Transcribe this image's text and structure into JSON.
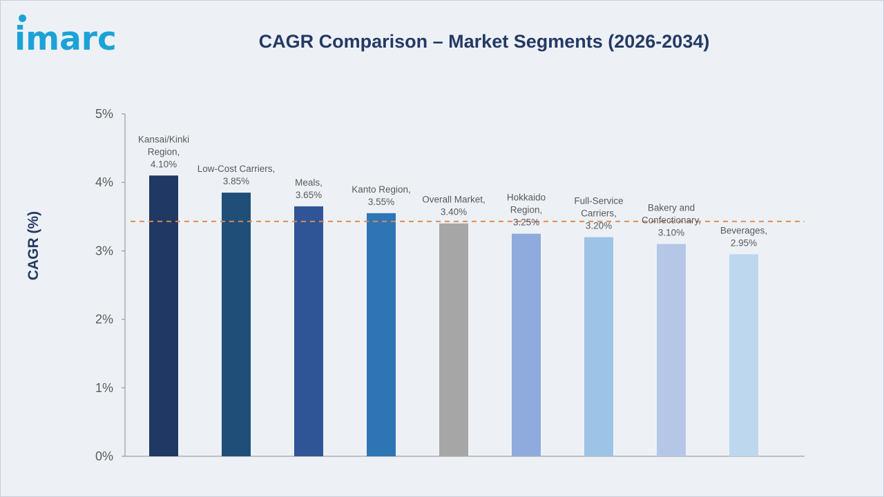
{
  "brand": {
    "logo_text": "imarc"
  },
  "chart_data": {
    "type": "bar",
    "title": "CAGR Comparison – Market Segments (2026-2034)",
    "xlabel": "",
    "ylabel": "CAGR (%)",
    "ylim": [
      0,
      5
    ],
    "yticks": [
      "0%",
      "1%",
      "2%",
      "3%",
      "4%",
      "5%"
    ],
    "categories": [
      "Kansai/Kinki Region",
      "Low-Cost Carriers",
      "Meals",
      "Kanto Region",
      "Overall Market",
      "Hokkaido Region",
      "Full-Service Carriers",
      "Bakery and Confectionary",
      "Beverages"
    ],
    "values": [
      4.1,
      3.85,
      3.65,
      3.55,
      3.4,
      3.25,
      3.2,
      3.1,
      2.95
    ],
    "data_labels": [
      [
        "Kansai/Kinki",
        "Region,",
        "4.10%"
      ],
      [
        "Low-Cost Carriers,",
        "3.85%"
      ],
      [
        "Meals,",
        "3.65%"
      ],
      [
        "Kanto Region,",
        "3.55%"
      ],
      [
        "Overall Market,",
        "3.40%"
      ],
      [
        "Hokkaido",
        "Region,",
        "3.25%"
      ],
      [
        "Full-Service",
        "Carriers,",
        "3.20%"
      ],
      [
        "Bakery and",
        "Confectionary,",
        "3.10%"
      ],
      [
        "Beverages,",
        "2.95%"
      ]
    ],
    "colors": [
      "#1f3864",
      "#1f4e79",
      "#2f5597",
      "#2e75b6",
      "#a6a6a6",
      "#8faadc",
      "#9dc3e6",
      "#b4c7e7",
      "#bdd7ee"
    ],
    "reference_line": {
      "value": 3.43,
      "style": "dashed",
      "color": "#e08a4b"
    },
    "grid": false,
    "legend": "none"
  }
}
